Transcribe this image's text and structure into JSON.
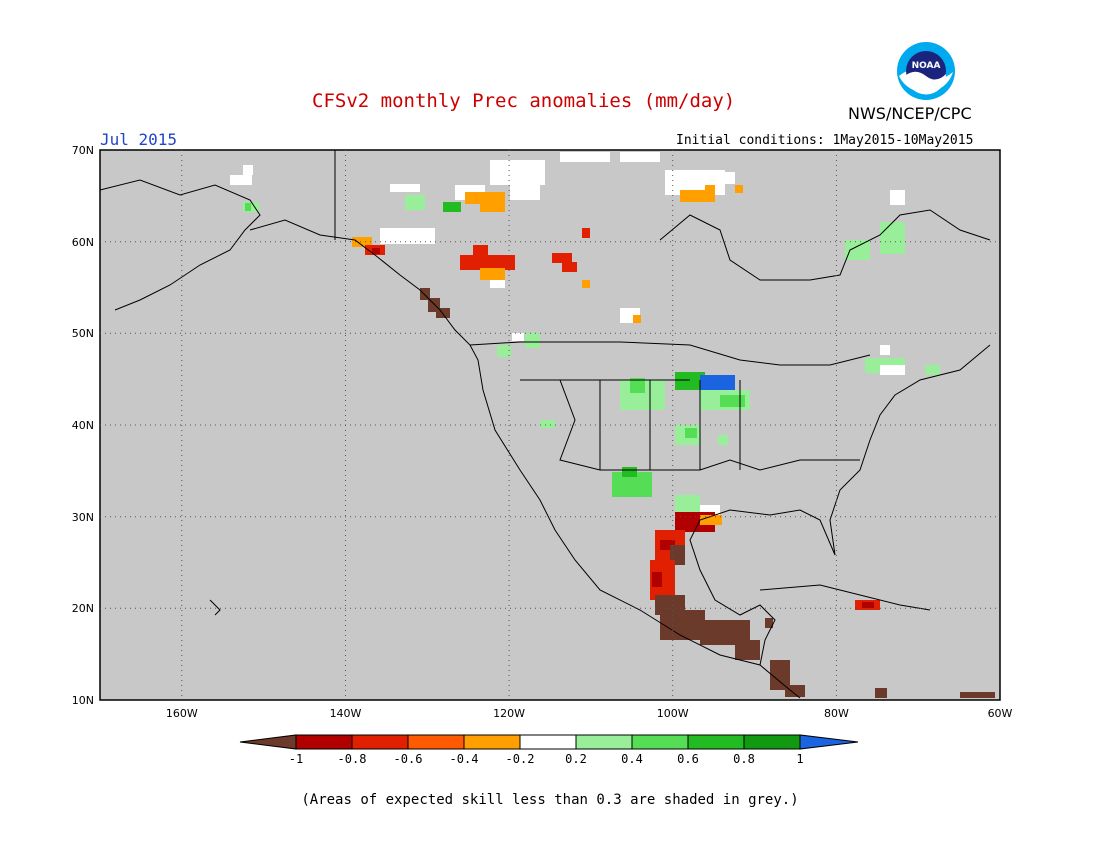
{
  "header": {
    "title": "CFSv2 monthly Prec anomalies (mm/day)",
    "org": "NWS/NCEP/CPC",
    "month": "Jul 2015",
    "init": "Initial conditions: 1May2015-10May2015"
  },
  "logo": {
    "text": "NOAA",
    "icon": "noaa-logo-icon"
  },
  "map": {
    "lon_range": [
      -170,
      -60
    ],
    "lat_range": [
      10,
      70
    ],
    "lat_labels": [
      "10N",
      "20N",
      "30N",
      "40N",
      "50N",
      "60N",
      "70N"
    ],
    "lon_labels": [
      "160W",
      "140W",
      "120W",
      "100W",
      "80W",
      "60W"
    ],
    "gridlines": true,
    "background_color": "#c8c8c8"
  },
  "legend": {
    "ticks": [
      "-1",
      "-0.8",
      "-0.6",
      "-0.4",
      "-0.2",
      "0.2",
      "0.4",
      "0.6",
      "0.8",
      "1"
    ],
    "colors": [
      "#6b3a2a",
      "#b00000",
      "#e02000",
      "#ff5a00",
      "#ffa000",
      "#ffffff",
      "#99ee99",
      "#55dd55",
      "#22bb22",
      "#119911",
      "#1a64e0"
    ]
  },
  "note": "(Areas of expected skill less than 0.3 are shaded in grey.)"
}
